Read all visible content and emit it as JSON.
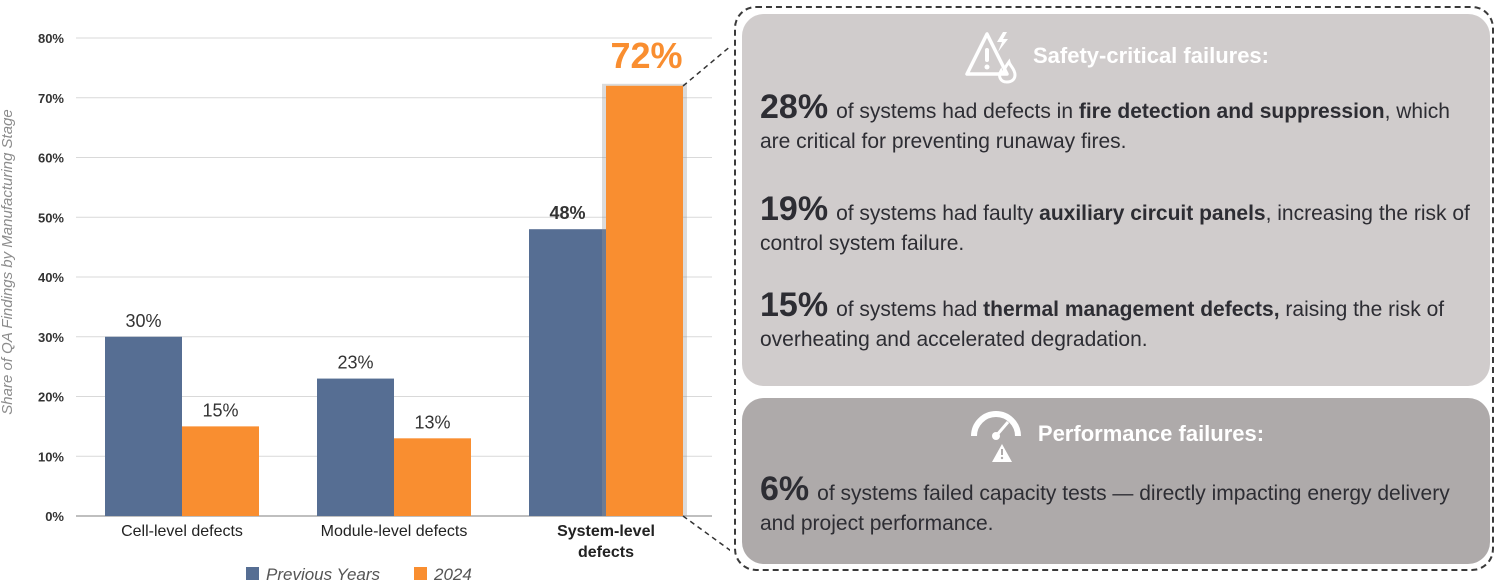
{
  "chart_data": {
    "type": "bar",
    "categories": [
      "Cell-level defects",
      "Module-level defects",
      "System-level defects"
    ],
    "series": [
      {
        "name": "Previous Years",
        "values": [
          30,
          23,
          48
        ],
        "color": "#566e93"
      },
      {
        "name": "2024",
        "values": [
          15,
          13,
          72
        ],
        "color": "#f98e30"
      }
    ],
    "data_labels": [
      [
        "30%",
        "23%",
        "48%"
      ],
      [
        "15%",
        "13%",
        "72%"
      ]
    ],
    "ylabel": "Share of QA Findings by Manufacturing Stage",
    "ylim": [
      0,
      80
    ],
    "yticks": [
      "0%",
      "10%",
      "20%",
      "30%",
      "40%",
      "50%",
      "60%",
      "70%",
      "80%"
    ],
    "grid": true,
    "legend_position": "bottom",
    "highlight_category": "System-level defects",
    "highlight_lines": [
      "System-level",
      "defects"
    ]
  },
  "safety_panel": {
    "title": "Safety-critical failures:",
    "icon": "warning-fire-icon",
    "items": [
      {
        "value": "28%",
        "pre": "of systems had defects in ",
        "bold": "fire detection and suppression",
        "post": ", which are critical for preventing runaway fires."
      },
      {
        "value": "19%",
        "pre": "of systems had faulty ",
        "bold": "auxiliary circuit panels",
        "post": ", increasing the risk of control system failure."
      },
      {
        "value": "15%",
        "pre": "of systems had ",
        "bold": "thermal management defects,",
        "post": " raising the risk of overheating and accelerated degradation."
      }
    ]
  },
  "performance_panel": {
    "title": "Performance failures:",
    "icon": "gauge-warning-icon",
    "items": [
      {
        "value": "6%",
        "text": "of systems failed capacity tests — directly impacting energy delivery and project performance."
      }
    ]
  },
  "colors": {
    "previous": "#566e93",
    "current": "#f98e30",
    "panel_light": "#d0cccc",
    "panel_dark": "#aeaaaa"
  }
}
